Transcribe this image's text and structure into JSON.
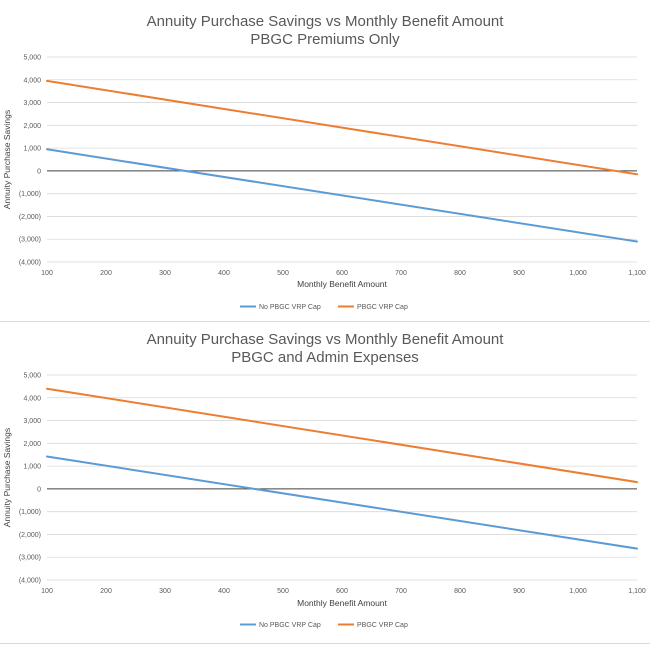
{
  "chart_data": [
    {
      "type": "line",
      "title": "Annuity Purchase Savings vs Monthly Benefit Amount",
      "subtitle": "PBGC Premiums Only",
      "xlabel": "Monthly Benefit Amount",
      "ylabel": "Annuity Purchase Savings",
      "x_ticks": [
        "100",
        "200",
        "300",
        "400",
        "500",
        "600",
        "700",
        "800",
        "900",
        "1,000",
        "1,100"
      ],
      "y_ticks": [
        "5,000",
        "4,000",
        "3,000",
        "2,000",
        "1,000",
        "0",
        "(1,000)",
        "(2,000)",
        "(3,000)",
        "(4,000)"
      ],
      "xlim": [
        100,
        1100
      ],
      "ylim": [
        -4000,
        5000
      ],
      "grid": true,
      "legend": "bottom",
      "series": [
        {
          "name": "No PBGC VRP Cap",
          "color": "#5B9BD5",
          "x": [
            100,
            1100
          ],
          "values": [
            950,
            -3100
          ]
        },
        {
          "name": "PBGC VRP Cap",
          "color": "#ED7D31",
          "x": [
            100,
            1100
          ],
          "values": [
            3950,
            -150
          ]
        }
      ]
    },
    {
      "type": "line",
      "title": "Annuity Purchase Savings vs Monthly Benefit Amount",
      "subtitle": "PBGC and Admin Expenses",
      "xlabel": "Monthly Benefit Amount",
      "ylabel": "Annuity Purchase Savings",
      "x_ticks": [
        "100",
        "200",
        "300",
        "400",
        "500",
        "600",
        "700",
        "800",
        "900",
        "1,000",
        "1,100"
      ],
      "y_ticks": [
        "5,000",
        "4,000",
        "3,000",
        "2,000",
        "1,000",
        "0",
        "(1,000)",
        "(2,000)",
        "(3,000)",
        "(4,000)"
      ],
      "xlim": [
        100,
        1100
      ],
      "ylim": [
        -4000,
        5000
      ],
      "grid": true,
      "legend": "bottom",
      "series": [
        {
          "name": "No PBGC VRP Cap",
          "color": "#5B9BD5",
          "x": [
            100,
            1100
          ],
          "values": [
            1420,
            -2620
          ]
        },
        {
          "name": "PBGC VRP Cap",
          "color": "#ED7D31",
          "x": [
            100,
            1100
          ],
          "values": [
            4400,
            300
          ]
        }
      ]
    }
  ]
}
